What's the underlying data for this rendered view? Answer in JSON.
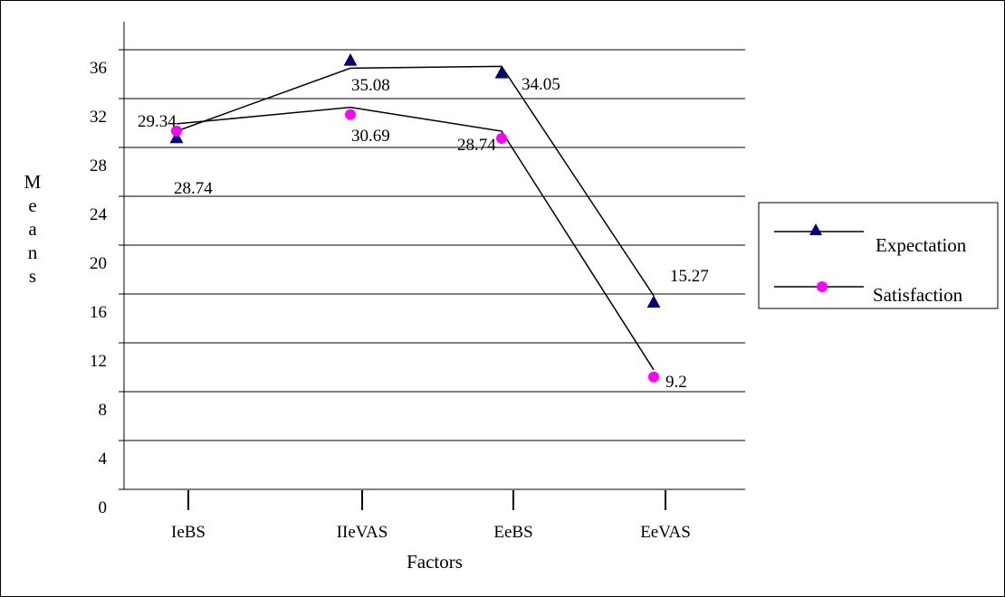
{
  "chart_data": {
    "type": "line",
    "title": "",
    "xlabel": "Factors",
    "ylabel": "Means",
    "categories": [
      "IeBS",
      "IIeVAS",
      "EeBS",
      "EeVAS"
    ],
    "ylim": [
      0,
      38
    ],
    "yticks": [
      0,
      4,
      8,
      12,
      16,
      20,
      24,
      28,
      32,
      36
    ],
    "grid": true,
    "legend_position": "right",
    "series": [
      {
        "name": "Expectation",
        "values": [
          28.74,
          35.08,
          34.05,
          15.27
        ],
        "labels": [
          "28.74",
          "35.08",
          "34.05",
          "15.27"
        ],
        "marker": "triangle",
        "color": "#000080"
      },
      {
        "name": "Satisfaction",
        "values": [
          29.34,
          30.69,
          28.74,
          9.2
        ],
        "labels": [
          "29.34",
          "30.69",
          "28.74",
          "9.2"
        ],
        "marker": "circle",
        "color": "#ff00ff"
      }
    ]
  }
}
